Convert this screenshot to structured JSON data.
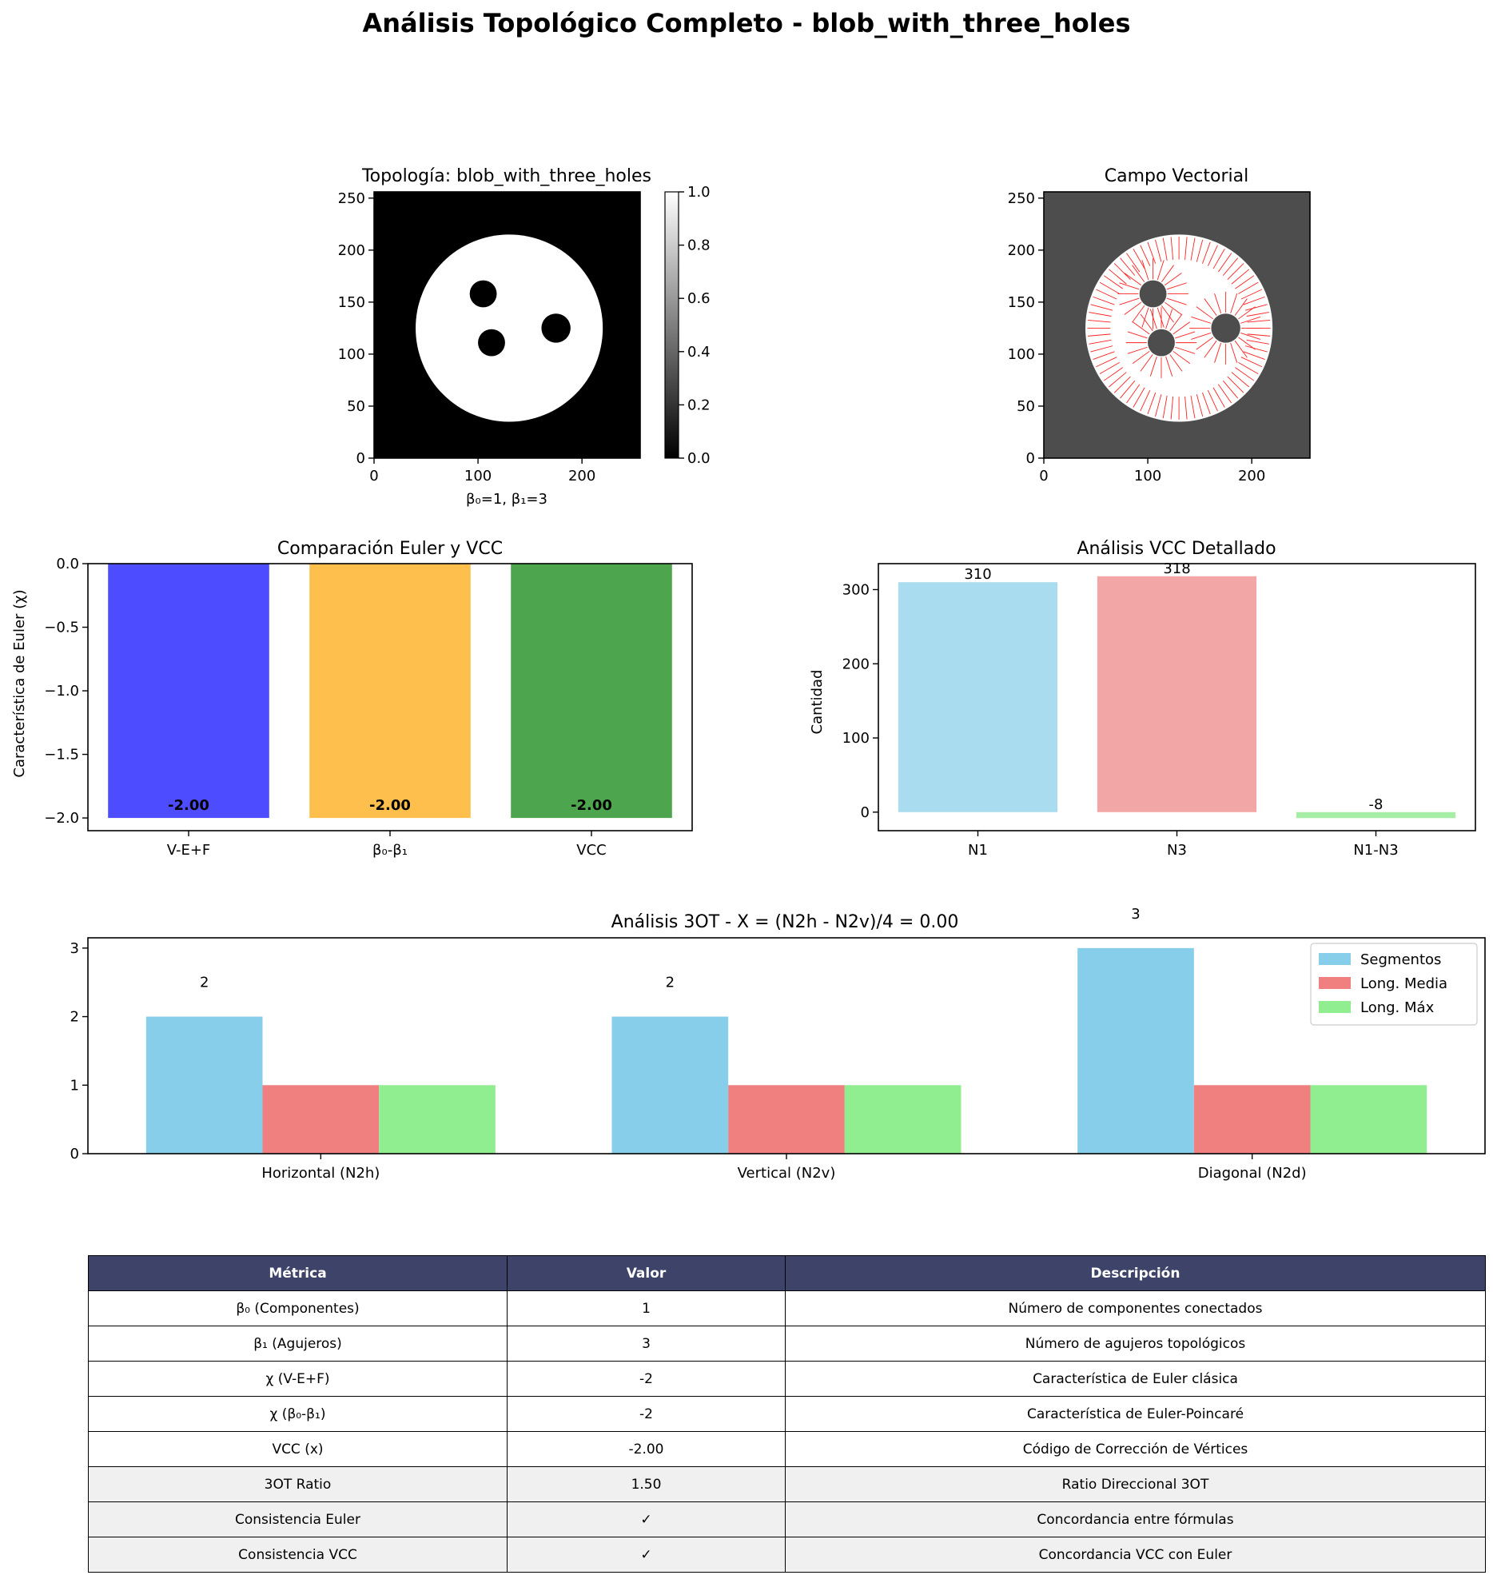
{
  "suptitle": "Análisis Topológico Completo - blob_with_three_holes",
  "colors": {
    "euler_bars": [
      "#4d4dff",
      "#ffbf4d",
      "#4da64d"
    ],
    "vcc_bars": [
      "#a9dcee",
      "#f3a6a6",
      "#a6eea6"
    ],
    "ot_series": [
      "#87ceeb",
      "#f08080",
      "#90ee90"
    ],
    "table_header": "#3e4469",
    "vector_bg": "#4d4d4d",
    "vector_arrow": "#ff2020"
  },
  "topology_panel": {
    "title": "Topología: blob_with_three_holes",
    "xlabel": "β₀=1, β₁=3",
    "xticks": [
      "0",
      "100",
      "200"
    ],
    "yticks": [
      "0",
      "50",
      "100",
      "150",
      "200",
      "250"
    ],
    "colorbar_ticks": [
      "0.0",
      "0.2",
      "0.4",
      "0.6",
      "0.8",
      "1.0"
    ],
    "image_extent": [
      0,
      256
    ],
    "blob": {
      "cx": 130,
      "cy": 125,
      "r": 90
    },
    "holes": [
      {
        "cx": 105,
        "cy": 158,
        "r": 13
      },
      {
        "cx": 113,
        "cy": 111,
        "r": 13
      },
      {
        "cx": 175,
        "cy": 125,
        "r": 14
      }
    ]
  },
  "vector_panel": {
    "title": "Campo Vectorial",
    "xticks": [
      "0",
      "100",
      "200"
    ],
    "yticks": [
      "0",
      "50",
      "100",
      "150",
      "200",
      "250"
    ]
  },
  "chart_data": [
    {
      "type": "bar",
      "title": "Comparación Euler y VCC",
      "ylabel": "Característica de Euler (χ)",
      "categories": [
        "V-E+F",
        "β₀-β₁",
        "VCC"
      ],
      "values": [
        -2.0,
        -2.0,
        -2.0
      ],
      "data_labels": [
        "-2.00",
        "-2.00",
        "-2.00"
      ],
      "ylim": [
        -2.1,
        0.0
      ],
      "yticks": [
        "0.0",
        "−0.5",
        "−1.0",
        "−1.5",
        "−2.0"
      ]
    },
    {
      "type": "bar",
      "title": "Análisis VCC Detallado",
      "ylabel": "Cantidad",
      "categories": [
        "N1",
        "N3",
        "N1-N3"
      ],
      "values": [
        310,
        318,
        -8
      ],
      "data_labels": [
        "310",
        "318",
        "-8"
      ],
      "ylim": [
        -25,
        335
      ],
      "yticks": [
        "0",
        "100",
        "200",
        "300"
      ]
    },
    {
      "type": "bar",
      "title": "Análisis 3OT - X = (N2h - N2v)/4 = 0.00",
      "categories": [
        "Horizontal (N2h)",
        "Vertical (N2v)",
        "Diagonal (N2d)"
      ],
      "series": [
        {
          "name": "Segmentos",
          "values": [
            2,
            2,
            3
          ]
        },
        {
          "name": "Long. Media",
          "values": [
            1,
            1,
            1
          ]
        },
        {
          "name": "Long. Máx",
          "values": [
            1,
            1,
            1
          ]
        }
      ],
      "data_labels": [
        "2",
        "2",
        "3"
      ],
      "ylim": [
        0,
        3.15
      ],
      "yticks": [
        "0",
        "1",
        "2",
        "3"
      ],
      "legend": "top-right"
    }
  ],
  "table": {
    "headers": [
      "Métrica",
      "Valor",
      "Descripción"
    ],
    "rows": [
      [
        "β₀ (Componentes)",
        "1",
        "Número de componentes conectados"
      ],
      [
        "β₁ (Agujeros)",
        "3",
        "Número de agujeros topológicos"
      ],
      [
        "χ (V-E+F)",
        "-2",
        "Característica de Euler clásica"
      ],
      [
        "χ (β₀-β₁)",
        "-2",
        "Característica de Euler-Poincaré"
      ],
      [
        "VCC (x)",
        "-2.00",
        "Código de Corrección de Vértices"
      ],
      [
        "3OT Ratio",
        "1.50",
        "Ratio Direccional 3OT"
      ],
      [
        "Consistencia Euler",
        "✓",
        "Concordancia entre fórmulas"
      ],
      [
        "Consistencia VCC",
        "✓",
        "Concordancia VCC con Euler"
      ]
    ],
    "shaded_rows": [
      5,
      6,
      7
    ]
  }
}
